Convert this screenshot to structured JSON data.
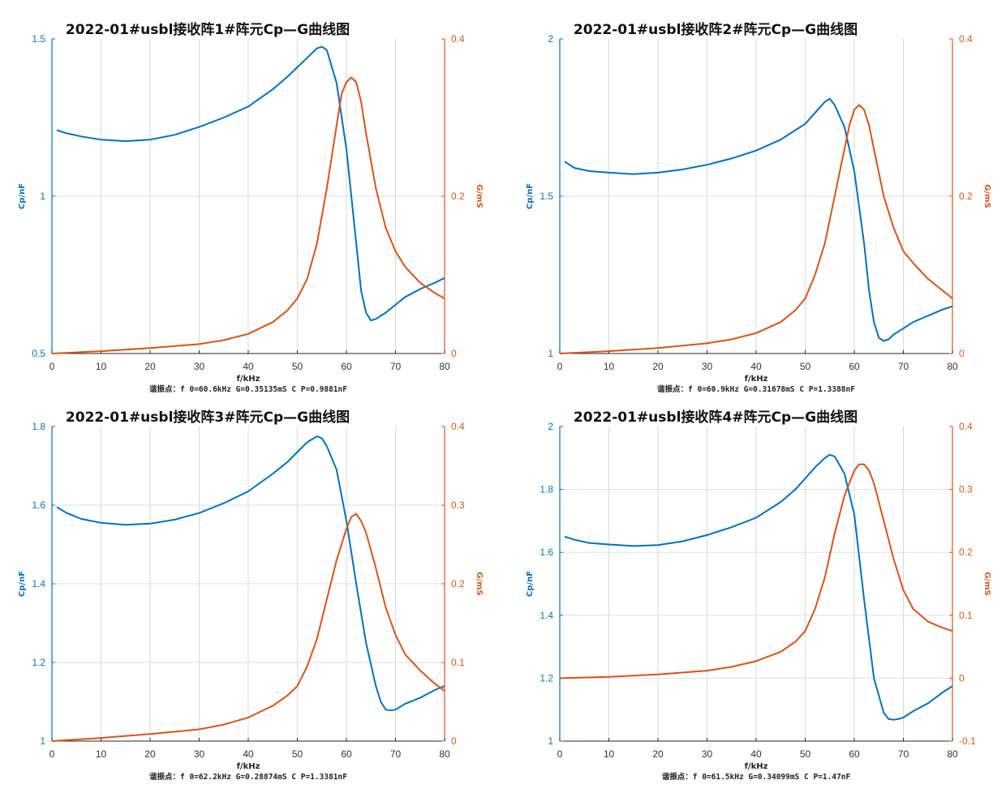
{
  "chart_data": [
    {
      "type": "line",
      "title": "2022-01#usbl接收阵1#阵元Cp—G曲线图",
      "xlabel": "f/kHz",
      "ylabel_left": "Cp/nF",
      "ylabel_right": "G/mS",
      "xlim": [
        0,
        80
      ],
      "xticks": [
        0,
        10,
        20,
        30,
        40,
        50,
        60,
        70,
        80
      ],
      "ylim_left": [
        0.5,
        1.5
      ],
      "yticks_left": [
        0.5,
        1,
        1.5
      ],
      "ylim_right": [
        0,
        0.4
      ],
      "yticks_right": [
        0,
        0.2,
        0.4
      ],
      "grid": true,
      "colors": {
        "cp": "#0072BD",
        "g": "#D95319"
      },
      "series": [
        {
          "axis": "left",
          "x": [
            1,
            3,
            6,
            10,
            15,
            20,
            25,
            30,
            35,
            40,
            45,
            48,
            50,
            52,
            54,
            55,
            56,
            58,
            60,
            62,
            63,
            64,
            65,
            66,
            68,
            70,
            72,
            75,
            78,
            80
          ],
          "values": [
            1.21,
            1.2,
            1.19,
            1.18,
            1.175,
            1.18,
            1.195,
            1.22,
            1.25,
            1.285,
            1.34,
            1.38,
            1.41,
            1.44,
            1.47,
            1.475,
            1.465,
            1.36,
            1.15,
            0.85,
            0.7,
            0.63,
            0.605,
            0.61,
            0.63,
            0.655,
            0.68,
            0.705,
            0.725,
            0.74
          ]
        },
        {
          "axis": "right",
          "x": [
            0,
            10,
            20,
            30,
            35,
            40,
            45,
            48,
            50,
            52,
            54,
            56,
            58,
            59,
            60,
            61,
            62,
            63,
            64,
            66,
            68,
            70,
            72,
            75,
            78,
            80
          ],
          "values": [
            0.0,
            0.003,
            0.007,
            0.012,
            0.017,
            0.025,
            0.04,
            0.055,
            0.07,
            0.095,
            0.14,
            0.21,
            0.29,
            0.33,
            0.345,
            0.351,
            0.345,
            0.32,
            0.28,
            0.21,
            0.16,
            0.13,
            0.11,
            0.09,
            0.077,
            0.07
          ]
        }
      ],
      "annotation": "谐振点：f 0=60.6kHz  G=0.35135mS  C  P=0.9881nF"
    },
    {
      "type": "line",
      "title": "2022-01#usbl接收阵2#阵元Cp—G曲线图",
      "xlabel": "f/kHz",
      "ylabel_left": "Cp/nF",
      "ylabel_right": "G/mS",
      "xlim": [
        0,
        80
      ],
      "xticks": [
        0,
        10,
        20,
        30,
        40,
        50,
        60,
        70,
        80
      ],
      "ylim_left": [
        1,
        2
      ],
      "yticks_left": [
        1,
        1.5,
        2
      ],
      "ylim_right": [
        0,
        0.4
      ],
      "yticks_right": [
        0,
        0.2,
        0.4
      ],
      "grid": true,
      "colors": {
        "cp": "#0072BD",
        "g": "#D95319"
      },
      "series": [
        {
          "axis": "left",
          "x": [
            1,
            3,
            6,
            10,
            15,
            20,
            25,
            30,
            35,
            40,
            45,
            48,
            50,
            52,
            54,
            55,
            56,
            58,
            60,
            62,
            63,
            64,
            65,
            66,
            67,
            68,
            70,
            72,
            75,
            78,
            80
          ],
          "values": [
            1.61,
            1.59,
            1.58,
            1.575,
            1.57,
            1.575,
            1.585,
            1.6,
            1.62,
            1.645,
            1.68,
            1.71,
            1.73,
            1.765,
            1.8,
            1.81,
            1.79,
            1.72,
            1.58,
            1.35,
            1.2,
            1.1,
            1.05,
            1.04,
            1.045,
            1.06,
            1.08,
            1.1,
            1.12,
            1.14,
            1.15
          ]
        },
        {
          "axis": "right",
          "x": [
            0,
            10,
            20,
            30,
            35,
            40,
            45,
            48,
            50,
            52,
            54,
            56,
            58,
            59,
            60,
            61,
            62,
            63,
            64,
            66,
            68,
            70,
            72,
            75,
            78,
            80
          ],
          "values": [
            0.0,
            0.003,
            0.007,
            0.013,
            0.018,
            0.026,
            0.04,
            0.055,
            0.07,
            0.1,
            0.14,
            0.2,
            0.26,
            0.29,
            0.31,
            0.316,
            0.31,
            0.29,
            0.26,
            0.2,
            0.16,
            0.13,
            0.115,
            0.095,
            0.08,
            0.07
          ]
        }
      ],
      "annotation": "谐振点：f 0=60.9kHz  G=0.31678mS  C  P=1.3388nF"
    },
    {
      "type": "line",
      "title": "2022-01#usbl接收阵3#阵元Cp—G曲线图",
      "xlabel": "f/kHz",
      "ylabel_left": "Cp/nF",
      "ylabel_right": "G/mS",
      "xlim": [
        0,
        80
      ],
      "xticks": [
        0,
        10,
        20,
        30,
        40,
        50,
        60,
        70,
        80
      ],
      "ylim_left": [
        1,
        1.8
      ],
      "yticks_left": [
        1,
        1.2,
        1.4,
        1.6,
        1.8
      ],
      "ylim_right": [
        0,
        0.4
      ],
      "yticks_right": [
        0,
        0.1,
        0.2,
        0.3,
        0.4
      ],
      "grid": true,
      "colors": {
        "cp": "#0072BD",
        "g": "#D95319"
      },
      "series": [
        {
          "axis": "left",
          "x": [
            1,
            3,
            6,
            10,
            15,
            20,
            25,
            30,
            35,
            40,
            45,
            48,
            50,
            52,
            54,
            55,
            56,
            58,
            60,
            62,
            64,
            66,
            67,
            68,
            69,
            70,
            72,
            75,
            78,
            80
          ],
          "values": [
            1.595,
            1.58,
            1.565,
            1.555,
            1.55,
            1.553,
            1.563,
            1.58,
            1.605,
            1.635,
            1.68,
            1.71,
            1.735,
            1.76,
            1.775,
            1.77,
            1.75,
            1.69,
            1.56,
            1.4,
            1.25,
            1.14,
            1.1,
            1.08,
            1.078,
            1.08,
            1.095,
            1.11,
            1.13,
            1.14
          ]
        },
        {
          "axis": "right",
          "x": [
            0,
            10,
            20,
            30,
            35,
            40,
            45,
            48,
            50,
            52,
            54,
            56,
            58,
            60,
            61,
            62,
            63,
            64,
            66,
            68,
            70,
            72,
            75,
            78,
            80
          ],
          "values": [
            0.0,
            0.004,
            0.009,
            0.015,
            0.021,
            0.03,
            0.045,
            0.058,
            0.07,
            0.095,
            0.13,
            0.18,
            0.23,
            0.27,
            0.285,
            0.289,
            0.28,
            0.265,
            0.22,
            0.17,
            0.135,
            0.11,
            0.09,
            0.073,
            0.064
          ]
        }
      ],
      "annotation": "谐振点：f 0=62.2kHz  G=0.28874mS  C  P=1.3381nF"
    },
    {
      "type": "line",
      "title": "2022-01#usbl接收阵4#阵元Cp—G曲线图",
      "xlabel": "f/kHz",
      "ylabel_left": "Cp/nF",
      "ylabel_right": "G/mS",
      "xlim": [
        0,
        80
      ],
      "xticks": [
        0,
        10,
        20,
        30,
        40,
        50,
        60,
        70,
        80
      ],
      "ylim_left": [
        1,
        2
      ],
      "yticks_left": [
        1,
        1.2,
        1.4,
        1.6,
        1.8,
        2
      ],
      "ylim_right": [
        -0.1,
        0.4
      ],
      "yticks_right": [
        -0.1,
        0,
        0.1,
        0.2,
        0.3,
        0.4
      ],
      "grid": true,
      "colors": {
        "cp": "#0072BD",
        "g": "#D95319"
      },
      "series": [
        {
          "axis": "left",
          "x": [
            1,
            3,
            6,
            10,
            15,
            20,
            25,
            30,
            35,
            40,
            45,
            48,
            50,
            52,
            54,
            55,
            56,
            58,
            60,
            62,
            64,
            66,
            67,
            68,
            69,
            70,
            72,
            75,
            78,
            80
          ],
          "values": [
            1.65,
            1.64,
            1.63,
            1.625,
            1.62,
            1.623,
            1.635,
            1.655,
            1.68,
            1.71,
            1.76,
            1.8,
            1.835,
            1.87,
            1.9,
            1.91,
            1.905,
            1.85,
            1.72,
            1.45,
            1.2,
            1.09,
            1.07,
            1.068,
            1.07,
            1.075,
            1.095,
            1.12,
            1.155,
            1.175
          ]
        },
        {
          "axis": "right",
          "x": [
            0,
            10,
            20,
            30,
            35,
            40,
            45,
            48,
            50,
            52,
            54,
            56,
            58,
            60,
            61,
            62,
            63,
            64,
            66,
            68,
            70,
            72,
            75,
            78,
            80
          ],
          "values": [
            0.0,
            0.002,
            0.006,
            0.012,
            0.018,
            0.027,
            0.042,
            0.058,
            0.075,
            0.11,
            0.16,
            0.23,
            0.29,
            0.33,
            0.34,
            0.34,
            0.33,
            0.31,
            0.25,
            0.19,
            0.14,
            0.11,
            0.09,
            0.08,
            0.075
          ]
        }
      ],
      "annotation": "谐振点：f 0=61.5kHz  G=0.34099mS  C  P=1.47nF"
    }
  ]
}
